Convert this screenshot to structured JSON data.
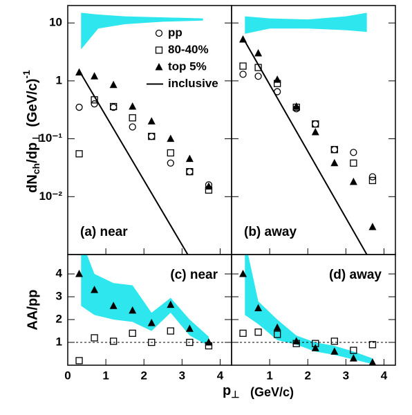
{
  "labels": {
    "ylabel_top": [
      "dN",
      "ch",
      "/dp",
      "⊥",
      "(GeV/c)",
      "-1"
    ],
    "ylabel_bottom": "AA/pp",
    "xlabel": [
      "p",
      "⊥"
    ],
    "xunit": "(GeV/c)"
  },
  "chart_data": [
    {
      "type": "scatter",
      "label": "(a) near",
      "log": true,
      "legend": true,
      "xtick_labels": false,
      "ytick_labels": true,
      "xlim": [
        0,
        4.3
      ],
      "xticks": [
        0,
        1,
        2,
        3,
        4
      ],
      "ylim": [
        0.001,
        20
      ],
      "yticks": [
        10,
        1,
        {
          "value": 0.1,
          "label": "10⁻¹"
        },
        {
          "value": 0.01,
          "label": "10⁻²"
        }
      ],
      "x": [
        0.3,
        0.7,
        1.2,
        1.7,
        2.2,
        2.7,
        3.2,
        3.7
      ],
      "band": {
        "color": "#2ee6ee",
        "x": [
          0.35,
          0.8,
          1.5,
          2.5,
          3.55
        ],
        "low": [
          3.5,
          8,
          9.5,
          10.5,
          11
        ],
        "high": [
          15,
          14,
          13,
          12.5,
          12
        ]
      },
      "series": [
        {
          "name": "pp",
          "marker": "circle",
          "color": "#000000",
          "values": [
            0.35,
            0.4,
            0.35,
            0.16,
            0.11,
            0.038,
            0.027,
            0.016
          ]
        },
        {
          "name": "80-40%",
          "marker": "square",
          "color": "#000000",
          "values": [
            0.055,
            0.47,
            0.36,
            0.23,
            0.11,
            0.057,
            0.027,
            0.013
          ]
        },
        {
          "name": "top 5%",
          "marker": "triangle",
          "color": "#000000",
          "values": [
            1.4,
            1.2,
            0.85,
            0.36,
            0.2,
            0.1,
            0.045,
            0.015
          ]
        },
        {
          "name": "inclusive",
          "marker": "line",
          "color": "#000000",
          "x": [
            0.3,
            3.15
          ],
          "values": [
            1.5,
            0.001
          ]
        }
      ]
    },
    {
      "type": "scatter",
      "label": "(b) away",
      "log": true,
      "legend": false,
      "xtick_labels": false,
      "ytick_labels": false,
      "xlim": [
        0,
        4.3
      ],
      "xticks": [
        1,
        2,
        3,
        4
      ],
      "ylim": [
        0.001,
        20
      ],
      "yticks": [
        10,
        1,
        0.1,
        0.01
      ],
      "x": [
        0.3,
        0.7,
        1.2,
        1.7,
        2.2,
        2.7,
        3.2,
        3.7
      ],
      "band": {
        "color": "#2ee6ee",
        "x": [
          0.35,
          1,
          2,
          3,
          3.55
        ],
        "low": [
          6.5,
          8,
          8,
          7.5,
          7
        ],
        "high": [
          13,
          12,
          11.5,
          13,
          15
        ]
      },
      "series": [
        {
          "name": "pp",
          "marker": "circle",
          "color": "#000000",
          "values": [
            1.3,
            1.2,
            0.65,
            0.33,
            0.18,
            0.065,
            0.058,
            0.022
          ]
        },
        {
          "name": "80-40%",
          "marker": "square",
          "color": "#000000",
          "values": [
            1.8,
            1.7,
            0.9,
            0.35,
            0.18,
            0.065,
            0.038,
            0.019
          ]
        },
        {
          "name": "top 5%",
          "marker": "triangle",
          "color": "#000000",
          "values": [
            5.2,
            3.0,
            1.05,
            0.36,
            0.13,
            0.038,
            0.018,
            0.003
          ]
        },
        {
          "name": "inclusive",
          "marker": "line",
          "color": "#000000",
          "x": [
            0.3,
            3.55
          ],
          "values": [
            5.5,
            0.001
          ]
        }
      ]
    },
    {
      "type": "scatter",
      "label": "(c) near",
      "log": false,
      "legend": false,
      "xtick_labels": true,
      "ytick_labels": true,
      "xlim": [
        0,
        4.3
      ],
      "xticks": [
        0,
        1,
        2,
        3,
        4
      ],
      "ylim": [
        0,
        4.85
      ],
      "yticks": [
        1,
        2,
        3,
        4
      ],
      "reference": 1,
      "x": [
        0.3,
        0.7,
        1.2,
        1.7,
        2.2,
        2.7,
        3.2,
        3.7
      ],
      "band": {
        "color": "#2ee6ee",
        "x": [
          0.35,
          0.7,
          1.2,
          1.7,
          2.2,
          2.7,
          3.2,
          3.7
        ],
        "low": [
          2.6,
          2.2,
          2.0,
          1.9,
          1.5,
          2.3,
          1.3,
          0.85
        ],
        "high": [
          5.5,
          4.0,
          3.6,
          3.5,
          2.3,
          2.95,
          2.0,
          1.25
        ]
      },
      "series": [
        {
          "name": "80-40%",
          "marker": "square",
          "color": "#000000",
          "values": [
            0.2,
            1.2,
            1.05,
            1.4,
            1.0,
            1.5,
            1.0,
            0.85
          ]
        },
        {
          "name": "top 5%",
          "marker": "triangle",
          "color": "#000000",
          "values": [
            4.0,
            3.3,
            2.6,
            2.4,
            1.85,
            2.65,
            1.6,
            1.0
          ]
        }
      ]
    },
    {
      "type": "scatter",
      "label": "(d) away",
      "log": false,
      "legend": false,
      "xtick_labels": true,
      "ytick_labels": false,
      "xlim": [
        0,
        4.3
      ],
      "xticks": [
        1,
        2,
        3,
        4
      ],
      "ylim": [
        0,
        4.85
      ],
      "yticks": [
        1,
        2,
        3,
        4
      ],
      "reference": 1,
      "x": [
        0.3,
        0.7,
        1.2,
        1.7,
        2.2,
        2.7,
        3.2,
        3.7
      ],
      "band": {
        "color": "#2ee6ee",
        "x": [
          0.35,
          0.7,
          1.2,
          1.7,
          2.2,
          2.7,
          3.2,
          3.7
        ],
        "low": [
          2.2,
          1.8,
          1.1,
          0.9,
          0.6,
          0.45,
          0.25,
          0.05
        ],
        "high": [
          5.5,
          2.8,
          2.0,
          1.3,
          1.0,
          0.85,
          0.6,
          0.3
        ]
      },
      "series": [
        {
          "name": "80-40%",
          "marker": "square",
          "color": "#000000",
          "values": [
            1.4,
            1.45,
            1.35,
            0.95,
            0.95,
            1.05,
            0.65,
            0.9
          ]
        },
        {
          "name": "top 5%",
          "marker": "triangle",
          "color": "#000000",
          "values": [
            4.0,
            2.5,
            1.65,
            1.05,
            0.75,
            0.6,
            0.3,
            0.12
          ]
        }
      ]
    }
  ]
}
